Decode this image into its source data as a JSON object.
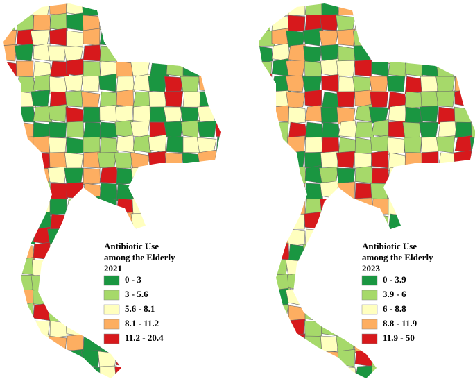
{
  "maps": [
    {
      "legend": {
        "title": [
          "Antibiotic Use",
          "among the Elderly",
          "2021"
        ],
        "items": [
          {
            "label": "0 - 3",
            "color": "#1a9641"
          },
          {
            "label": "3 - 5.6",
            "color": "#a6d96a"
          },
          {
            "label": "5.6 - 8.1",
            "color": "#ffffbf"
          },
          {
            "label": "8.1 - 11.2",
            "color": "#fdae61"
          },
          {
            "label": "11.2 - 20.4",
            "color": "#d7191c"
          }
        ]
      }
    },
    {
      "legend": {
        "title": [
          "Antibiotic Use",
          "among the Elderly",
          "2023"
        ],
        "items": [
          {
            "label": "0 - 3.9",
            "color": "#1a9641"
          },
          {
            "label": "3.9 - 6",
            "color": "#a6d96a"
          },
          {
            "label": "6 - 8.8",
            "color": "#ffffbf"
          },
          {
            "label": "8.8 - 11.9",
            "color": "#fdae61"
          },
          {
            "label": "11.9 - 50",
            "color": "#d7191c"
          }
        ]
      }
    }
  ]
}
